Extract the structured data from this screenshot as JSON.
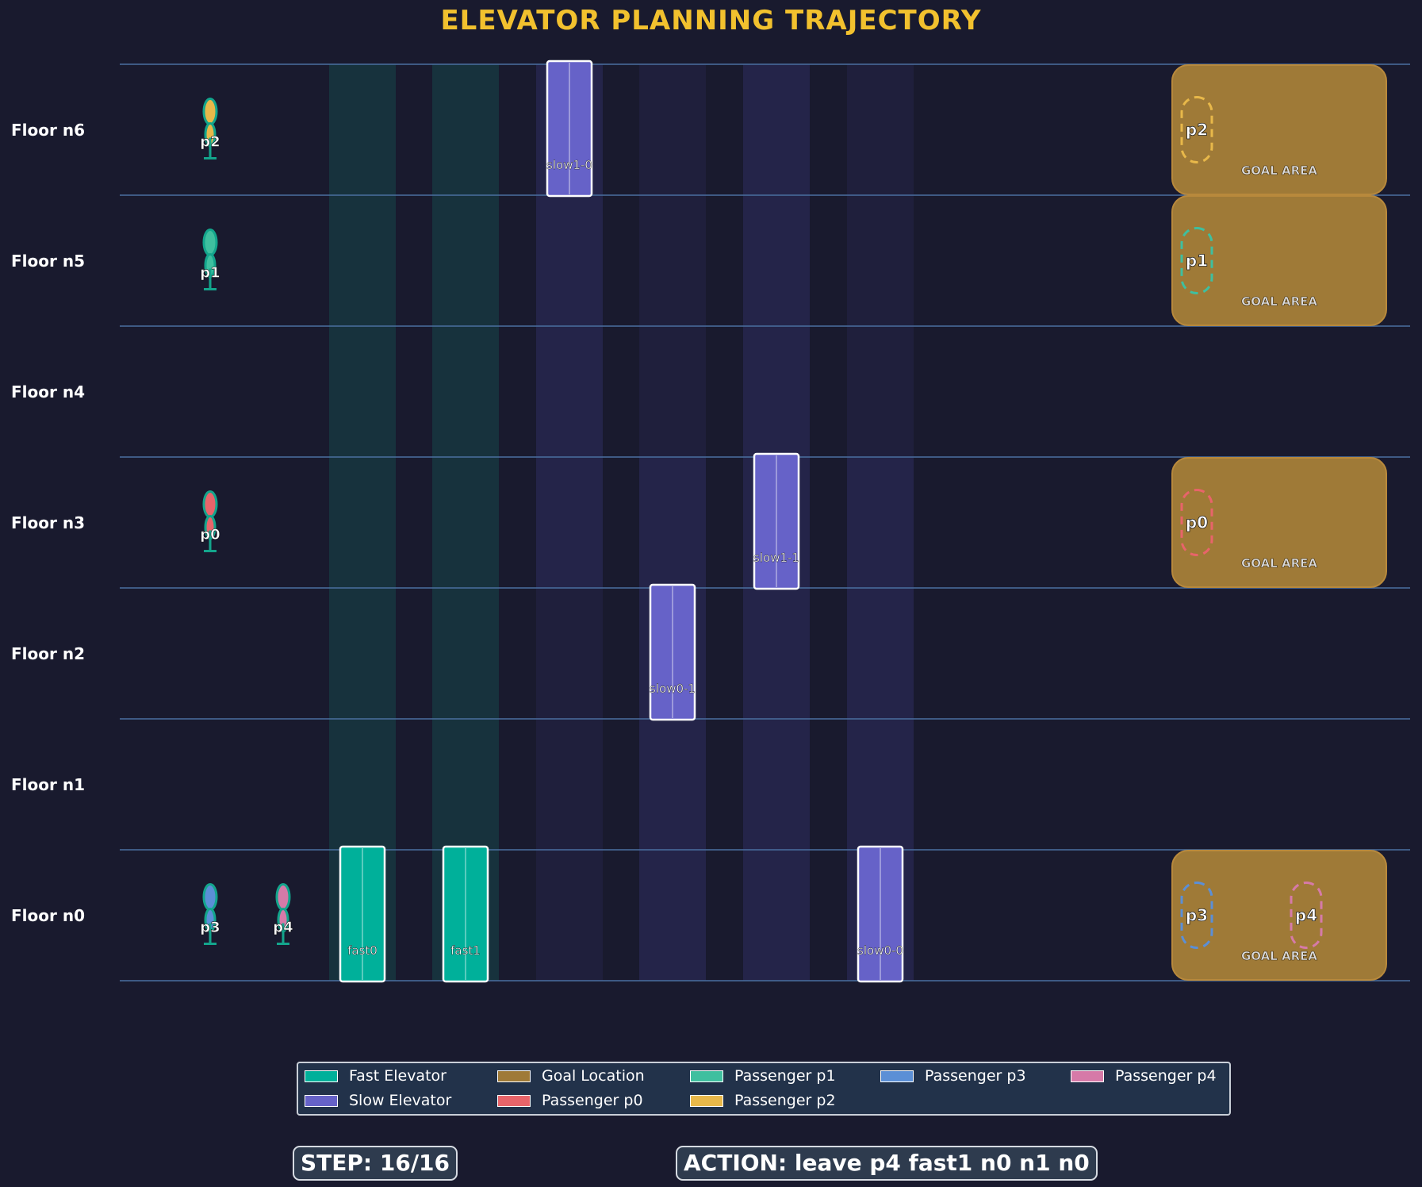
{
  "title": "ELEVATOR PLANNING TRAJECTORY",
  "floors": [
    "Floor n0",
    "Floor n1",
    "Floor n2",
    "Floor n3",
    "Floor n4",
    "Floor n5",
    "Floor n6"
  ],
  "elevators": [
    {
      "id": "fast0",
      "kind": "fast",
      "floor": 0
    },
    {
      "id": "fast1",
      "kind": "fast",
      "floor": 0
    },
    {
      "id": "slow1-0",
      "kind": "slow",
      "floor": 6
    },
    {
      "id": "slow0-1",
      "kind": "slow",
      "floor": 2
    },
    {
      "id": "slow1-1",
      "kind": "slow",
      "floor": 3
    },
    {
      "id": "slow0-0",
      "kind": "slow",
      "floor": 0
    }
  ],
  "passengers": [
    {
      "id": "p0",
      "floor": 3,
      "color": "#e8646a"
    },
    {
      "id": "p1",
      "floor": 5,
      "color": "#3fbf9f"
    },
    {
      "id": "p2",
      "floor": 6,
      "color": "#e8b84a"
    },
    {
      "id": "p3",
      "floor": 0,
      "color": "#5b8fd6"
    },
    {
      "id": "p4",
      "floor": 0,
      "color": "#d67aa8"
    }
  ],
  "goal_areas": [
    {
      "floor": 6,
      "label": "GOAL AREA",
      "passengers": [
        "p2"
      ]
    },
    {
      "floor": 5,
      "label": "GOAL AREA",
      "passengers": [
        "p1"
      ]
    },
    {
      "floor": 3,
      "label": "GOAL AREA",
      "passengers": [
        "p0"
      ]
    },
    {
      "floor": 0,
      "label": "GOAL AREA",
      "passengers": [
        "p3",
        "p4"
      ]
    }
  ],
  "legend": [
    {
      "label": "Fast Elevator",
      "color": "#00b09a"
    },
    {
      "label": "Slow Elevator",
      "color": "#6662c8"
    },
    {
      "label": "Goal Location",
      "color": "#9f7a37"
    },
    {
      "label": "Passenger p0",
      "color": "#e8646a"
    },
    {
      "label": "Passenger p1",
      "color": "#3fbf9f"
    },
    {
      "label": "Passenger p2",
      "color": "#e8b84a"
    },
    {
      "label": "Passenger p3",
      "color": "#5b8fd6"
    },
    {
      "label": "Passenger p4",
      "color": "#d67aa8"
    }
  ],
  "status": {
    "step": "STEP: 16/16",
    "action": "ACTION: leave p4 fast1 n0 n1 n0"
  },
  "colors": {
    "background": "#191a2e",
    "floor_line": "#4a6fa0",
    "fast_elevator": "#00b09a",
    "slow_elevator": "#6662c8",
    "goal": "#9f7a37",
    "title": "#f2c12e"
  }
}
